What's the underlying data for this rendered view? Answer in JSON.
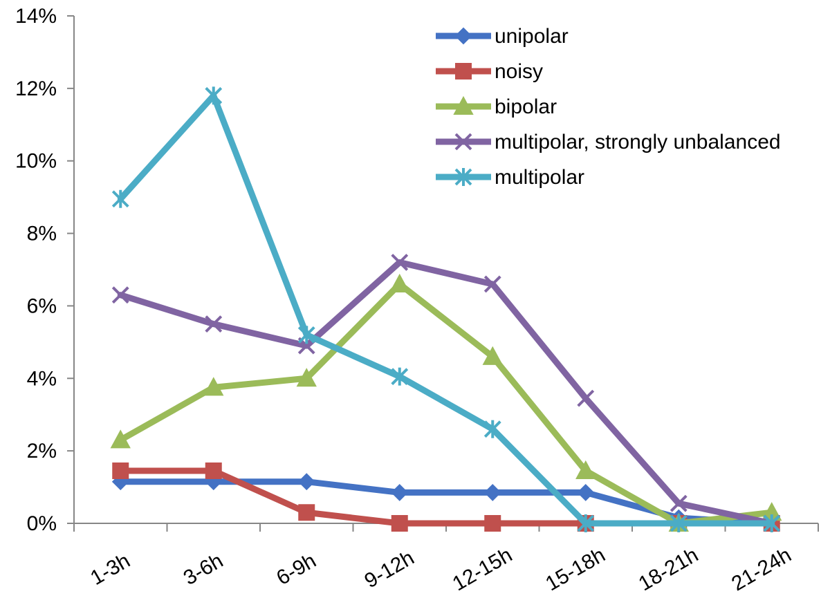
{
  "chart_data": {
    "type": "line",
    "categories": [
      "1-3h",
      "3-6h",
      "6-9h",
      "9-12h",
      "12-15h",
      "15-18h",
      "18-21h",
      "21-24h"
    ],
    "y_ticks": [
      "0%",
      "2%",
      "4%",
      "6%",
      "8%",
      "10%",
      "12%",
      "14%"
    ],
    "ylim": [
      0,
      14
    ],
    "grid": false,
    "legend_position": "top-right",
    "series": [
      {
        "name": "unipolar",
        "color": "#4472C4",
        "marker": "diamond",
        "values": [
          1.15,
          1.15,
          1.15,
          0.85,
          0.85,
          0.85,
          0.15,
          0.0
        ]
      },
      {
        "name": "noisy",
        "color": "#C0504D",
        "marker": "square",
        "values": [
          1.45,
          1.45,
          0.3,
          0.0,
          0.0,
          0.0,
          0.0,
          0.0
        ]
      },
      {
        "name": "bipolar",
        "color": "#9BBB59",
        "marker": "triangle",
        "values": [
          2.3,
          3.75,
          4.0,
          6.6,
          4.6,
          1.45,
          0.0,
          0.3
        ]
      },
      {
        "name": "multipolar, strongly unbalanced",
        "color": "#8064A2",
        "marker": "x",
        "values": [
          6.3,
          5.5,
          4.9,
          7.2,
          6.6,
          3.45,
          0.55,
          0.0
        ]
      },
      {
        "name": "multipolar",
        "color": "#4BACC6",
        "marker": "asterisk",
        "values": [
          8.95,
          11.8,
          5.2,
          4.05,
          2.6,
          0.0,
          0.0,
          0.0
        ]
      }
    ]
  }
}
